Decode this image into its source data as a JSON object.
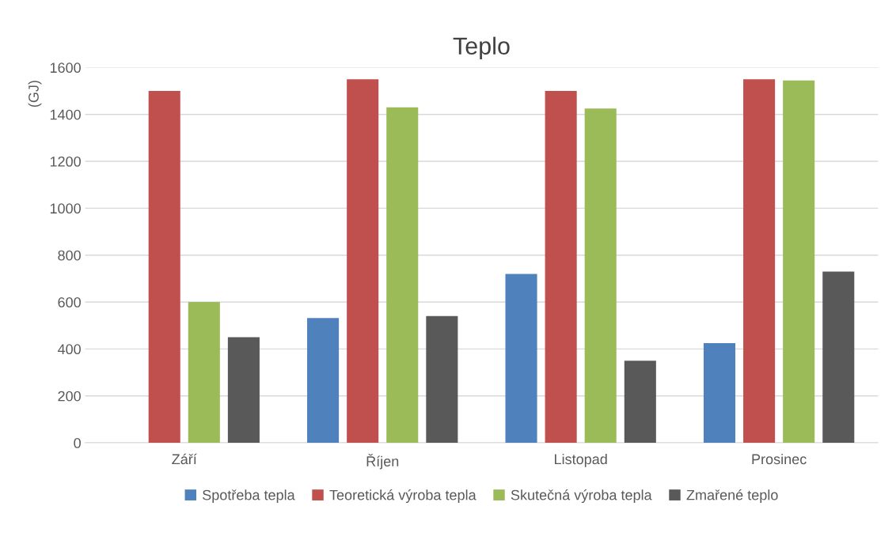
{
  "chart_data": {
    "type": "bar",
    "title": "Teplo",
    "ylabel": "(GJ)",
    "categories": [
      "Září",
      "Říjen",
      "Listopad",
      "Prosinec"
    ],
    "series": [
      {
        "name": "Spotřeba tepla",
        "color": "#4f81bd",
        "values": [
          0,
          532,
          720,
          425
        ]
      },
      {
        "name": "Teoretická výroba tepla",
        "color": "#c0504d",
        "values": [
          1500,
          1550,
          1500,
          1550
        ]
      },
      {
        "name": "Skutečná výroba tepla",
        "color": "#9bbb59",
        "values": [
          600,
          1430,
          1425,
          1545
        ]
      },
      {
        "name": "Zmařené teplo",
        "color": "#595959",
        "values": [
          450,
          540,
          350,
          730
        ]
      }
    ],
    "ylim": [
      0,
      1600
    ],
    "yticks": [
      0,
      200,
      400,
      600,
      800,
      1000,
      1200,
      1400,
      1600
    ],
    "grid": "y",
    "legend": "bottom"
  }
}
